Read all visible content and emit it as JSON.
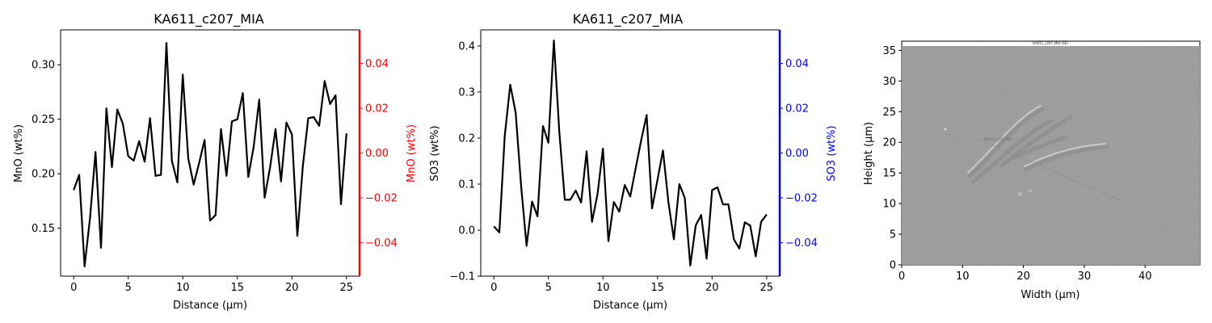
{
  "chart_data": [
    {
      "type": "line",
      "title": "KA611_c207_MIA",
      "xlabel": "Distance (µm)",
      "ylabel": "MnO (wt%)",
      "ylabel_right": "MnO (wt%)",
      "right_axis_color": "#ff0000",
      "line_color": "#000000",
      "xlim": [
        -1.2,
        26.2
      ],
      "ylim": [
        0.106,
        0.332
      ],
      "ylim_right": [
        -0.055,
        0.055
      ],
      "x_ticks": [
        0,
        5,
        10,
        15,
        20,
        25
      ],
      "y_ticks": [
        0.15,
        0.2,
        0.25,
        0.3
      ],
      "y_ticks_right": [
        -0.04,
        -0.02,
        0.0,
        0.02,
        0.04
      ],
      "x": [
        0,
        0.5,
        1.0,
        1.5,
        2.0,
        2.5,
        3.0,
        3.5,
        4.0,
        4.5,
        5.0,
        5.5,
        6.0,
        6.5,
        7.0,
        7.5,
        8.0,
        8.5,
        9.0,
        9.5,
        10.0,
        10.5,
        11.0,
        11.5,
        12.0,
        12.5,
        13.0,
        13.5,
        14.0,
        14.5,
        15.0,
        15.5,
        16.0,
        16.5,
        17.0,
        17.5,
        18.0,
        18.5,
        19.0,
        19.5,
        20.0,
        20.5,
        21.0,
        21.5,
        22.0,
        22.5,
        23.0,
        23.5,
        24.0,
        24.5,
        25.0
      ],
      "series": [
        {
          "values": [
            0.185,
            0.199,
            0.115,
            0.16,
            0.22,
            0.132,
            0.26,
            0.206,
            0.259,
            0.246,
            0.216,
            0.212,
            0.23,
            0.211,
            0.251,
            0.198,
            0.199,
            0.32,
            0.212,
            0.192,
            0.291,
            0.214,
            0.19,
            0.21,
            0.231,
            0.157,
            0.162,
            0.241,
            0.198,
            0.248,
            0.25,
            0.274,
            0.197,
            0.225,
            0.268,
            0.178,
            0.206,
            0.241,
            0.193,
            0.247,
            0.236,
            0.143,
            0.207,
            0.251,
            0.252,
            0.244,
            0.285,
            0.264,
            0.272,
            0.172,
            0.237
          ]
        }
      ]
    },
    {
      "type": "line",
      "title": "KA611_c207_MIA",
      "xlabel": "Distance (µm)",
      "ylabel": "SO3 (wt%)",
      "ylabel_right": "SO3 (wt%)",
      "right_axis_color": "#0000ff",
      "line_color": "#000000",
      "xlim": [
        -1.2,
        26.2
      ],
      "ylim": [
        -0.1,
        0.435
      ],
      "ylim_right": [
        -0.055,
        0.055
      ],
      "x_ticks": [
        0,
        5,
        10,
        15,
        20,
        25
      ],
      "y_ticks": [
        -0.1,
        0.0,
        0.1,
        0.2,
        0.3,
        0.4
      ],
      "y_ticks_right": [
        -0.04,
        -0.02,
        0.0,
        0.02,
        0.04
      ],
      "x": [
        0,
        0.5,
        1.0,
        1.5,
        2.0,
        2.5,
        3.0,
        3.5,
        4.0,
        4.5,
        5.0,
        5.5,
        6.0,
        6.5,
        7.0,
        7.5,
        8.0,
        8.5,
        9.0,
        9.5,
        10.0,
        10.5,
        11.0,
        11.5,
        12.0,
        12.5,
        13.0,
        13.5,
        14.0,
        14.5,
        15.0,
        15.5,
        16.0,
        16.5,
        17.0,
        17.5,
        18.0,
        18.5,
        19.0,
        19.5,
        20.0,
        20.5,
        21.0,
        21.5,
        22.0,
        22.5,
        23.0,
        23.5,
        24.0,
        24.5,
        25.0
      ],
      "series": [
        {
          "values": [
            0.008,
            -0.005,
            0.205,
            0.316,
            0.255,
            0.095,
            -0.034,
            0.062,
            0.03,
            0.226,
            0.19,
            0.412,
            0.214,
            0.066,
            0.066,
            0.086,
            0.06,
            0.171,
            0.018,
            0.078,
            0.177,
            -0.024,
            0.061,
            0.04,
            0.098,
            0.073,
            0.135,
            0.195,
            0.25,
            0.047,
            0.11,
            0.173,
            0.06,
            -0.02,
            0.1,
            0.07,
            -0.077,
            0.01,
            0.033,
            -0.062,
            0.087,
            0.093,
            0.056,
            0.056,
            -0.02,
            -0.04,
            0.017,
            0.01,
            -0.057,
            0.018,
            0.034
          ]
        }
      ]
    }
  ],
  "image_panel": {
    "inset_title": "KA611_c207_MIA (SE)",
    "spot_label": "KA611_c207_MIA",
    "xlabel": "Width (µm)",
    "ylabel": "Height (µm)",
    "xlim": [
      0,
      49
    ],
    "ylim": [
      0,
      36.5
    ],
    "x_ticks": [
      0,
      10,
      20,
      30,
      40
    ],
    "y_ticks": [
      0,
      5,
      10,
      15,
      20,
      25,
      30,
      35
    ]
  }
}
